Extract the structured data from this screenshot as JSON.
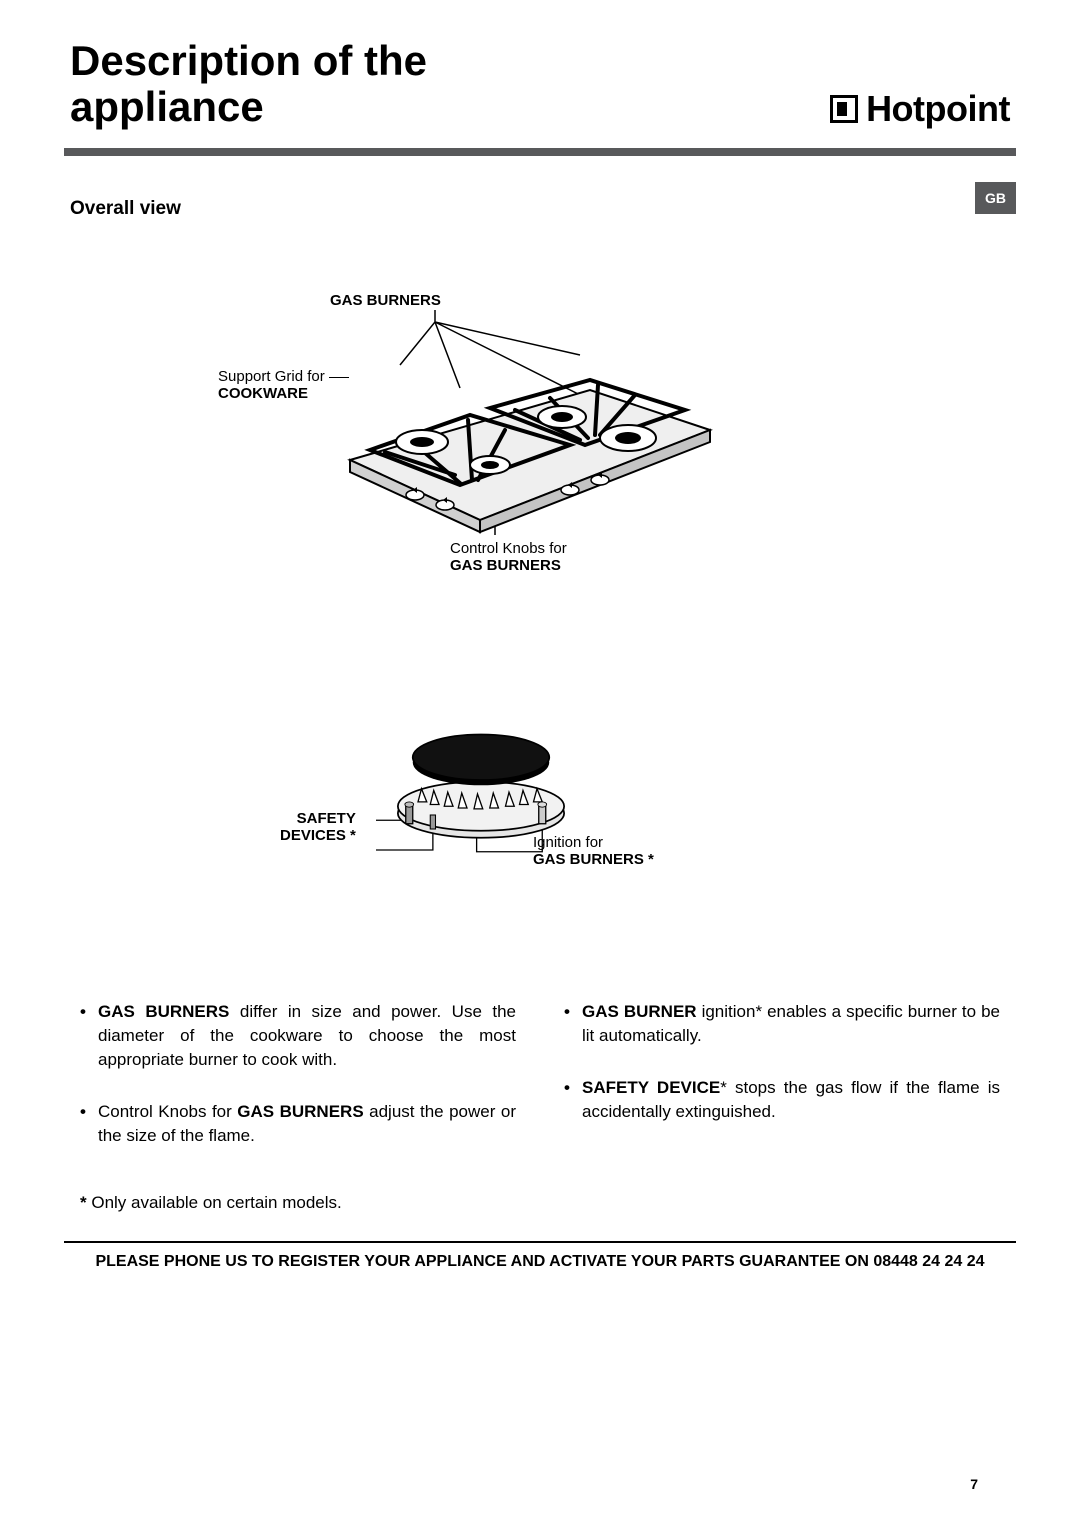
{
  "header": {
    "title": "Description of the\nappliance",
    "brand": "Hotpoint"
  },
  "subtitle": "Overall view",
  "lang_tab": "GB",
  "diagram_labels": {
    "top": "GAS BURNERS",
    "left_line1": "Support Grid for",
    "left_line2": "COOKWARE",
    "bottom_line1": "Control Knobs for",
    "bottom_line2": "GAS BURNERS",
    "safety_line1": "SAFETY",
    "safety_line2": "DEVICES *",
    "ignition_line1": "Ignition for",
    "ignition_line2": "GAS BURNERS *"
  },
  "bullets": {
    "col1": [
      {
        "b": "GAS BURNERS",
        "rest": " differ in size and power. Use the diameter of the cookware to choose the most appropriate burner to cook with."
      },
      {
        "pre": "Control Knobs for ",
        "b": "GAS BURNERS",
        "rest": " adjust the power or the size of the flame."
      }
    ],
    "col2": [
      {
        "b": "GAS BURNER",
        "rest": " ignition* enables a specific burner to be lit automatically."
      },
      {
        "b": "SAFETY DEVICE",
        "rest": "* stops the gas flow if the flame is accidentally extinguished."
      }
    ]
  },
  "footnote_star": "*",
  "footnote_text": " Only available on certain models.",
  "footer": "PLEASE PHONE US TO REGISTER YOUR APPLIANCE AND ACTIVATE YOUR PARTS GUARANTEE ON 08448 24 24 24",
  "page_number": "7"
}
